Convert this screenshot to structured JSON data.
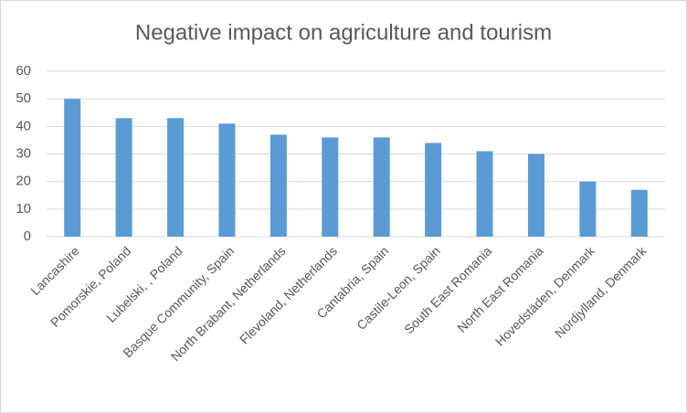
{
  "chart_data": {
    "type": "bar",
    "title": "Negative impact on agriculture and tourism",
    "categories": [
      "Lancashire",
      "Pomorskie, Poland",
      "Lubelski, , Poland",
      "Basque Community, Spain",
      "North Brabant, Netherlands",
      "Flevoland, Netherlands",
      "Cantabria, Spain",
      "Castile-Leon, Spain",
      "South East Romania",
      "North East Romania",
      "Hovedstäden, Denmark",
      "Nordjylland, Denmark"
    ],
    "values": [
      50,
      43,
      43,
      41,
      37,
      36,
      36,
      34,
      31,
      30,
      20,
      17
    ],
    "color": "#5b9bd5",
    "ylim": [
      0,
      60
    ],
    "yticks": [
      0,
      10,
      20,
      30,
      40,
      50,
      60
    ],
    "grid": true
  }
}
